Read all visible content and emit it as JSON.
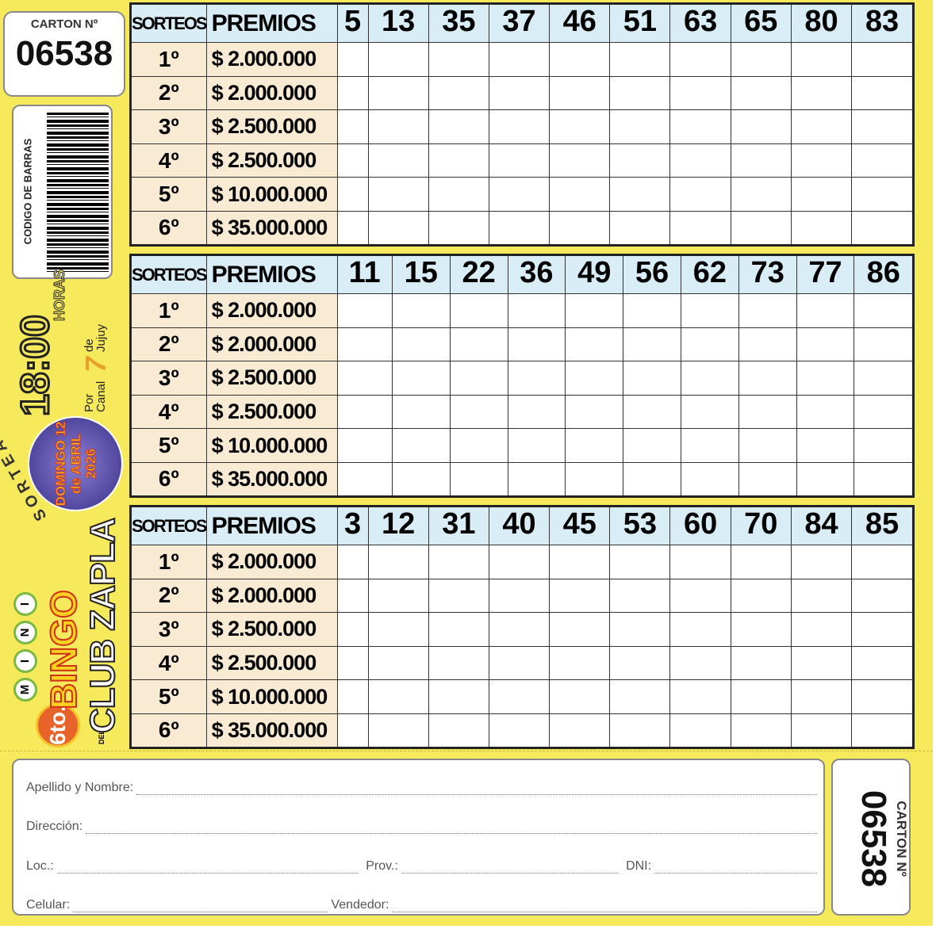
{
  "carton": {
    "label": "CARTON Nº",
    "number": "06538"
  },
  "barcode": {
    "label": "CODIGO DE BARRAS"
  },
  "promo": {
    "edition": "6to.",
    "del": "DEL",
    "mini_letters": [
      "M",
      "I",
      "N",
      "I"
    ],
    "bingo": "BINGO",
    "club": "CLUB ZAPLA",
    "sortea": "SORTEA",
    "date_lines": [
      "DOMINGO 12",
      "de ABRIL",
      "2026"
    ],
    "time": "18:00",
    "horas": "HORAS",
    "channel_prefix": "Por Canal",
    "channel_number": "7",
    "channel_suffix": "de Jujuy"
  },
  "headers": {
    "sorteos": "SORTEOS",
    "premios": "PREMIOS"
  },
  "draws": [
    "1º",
    "2º",
    "3º",
    "4º",
    "5º",
    "6º"
  ],
  "prizes": [
    "$ 2.000.000",
    "$ 2.000.000",
    "$ 2.500.000",
    "$ 2.500.000",
    "$ 10.000.000",
    "$ 35.000.000"
  ],
  "tables": [
    {
      "numbers": [
        "5",
        "13",
        "35",
        "37",
        "46",
        "51",
        "63",
        "65",
        "80",
        "83"
      ]
    },
    {
      "numbers": [
        "11",
        "15",
        "22",
        "36",
        "49",
        "56",
        "62",
        "73",
        "77",
        "86"
      ]
    },
    {
      "numbers": [
        "3",
        "12",
        "31",
        "40",
        "45",
        "53",
        "60",
        "70",
        "84",
        "85"
      ]
    }
  ],
  "form": {
    "name": "Apellido y Nombre:",
    "address": "Dirección:",
    "loc": "Loc.:",
    "prov": "Prov.:",
    "dni": "DNI:",
    "phone": "Celular:",
    "seller": "Vendedor:"
  },
  "colors": {
    "background": "#f6e95c",
    "header": "#d8edf5",
    "prize_cell": "#f9ead3"
  }
}
